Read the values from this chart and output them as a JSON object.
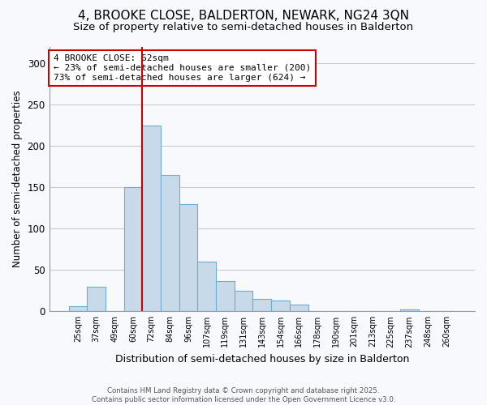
{
  "title": "4, BROOKE CLOSE, BALDERTON, NEWARK, NG24 3QN",
  "subtitle": "Size of property relative to semi-detached houses in Balderton",
  "xlabel": "Distribution of semi-detached houses by size in Balderton",
  "ylabel": "Number of semi-detached properties",
  "categories": [
    "25sqm",
    "37sqm",
    "49sqm",
    "60sqm",
    "72sqm",
    "84sqm",
    "96sqm",
    "107sqm",
    "119sqm",
    "131sqm",
    "143sqm",
    "154sqm",
    "166sqm",
    "178sqm",
    "190sqm",
    "201sqm",
    "213sqm",
    "225sqm",
    "237sqm",
    "248sqm",
    "260sqm"
  ],
  "values": [
    6,
    30,
    0,
    150,
    225,
    165,
    130,
    60,
    37,
    25,
    15,
    13,
    8,
    0,
    0,
    0,
    0,
    0,
    2,
    0,
    0
  ],
  "bar_color": "#c8daea",
  "bar_edge_color": "#6aaed6",
  "property_bin_index": 3,
  "annotation_title": "4 BROOKE CLOSE: 62sqm",
  "annotation_line1": "← 23% of semi-detached houses are smaller (200)",
  "annotation_line2": "73% of semi-detached houses are larger (624) →",
  "annotation_box_color": "#ffffff",
  "annotation_border_color": "#cc0000",
  "vline_color": "#cc0000",
  "ylim": [
    0,
    320
  ],
  "yticks": [
    0,
    50,
    100,
    150,
    200,
    250,
    300
  ],
  "footer1": "Contains HM Land Registry data © Crown copyright and database right 2025.",
  "footer2": "Contains public sector information licensed under the Open Government Licence v3.0.",
  "bg_color": "#f7f9fc",
  "grid_color": "#cccccc",
  "title_fontsize": 11,
  "subtitle_fontsize": 9.5
}
